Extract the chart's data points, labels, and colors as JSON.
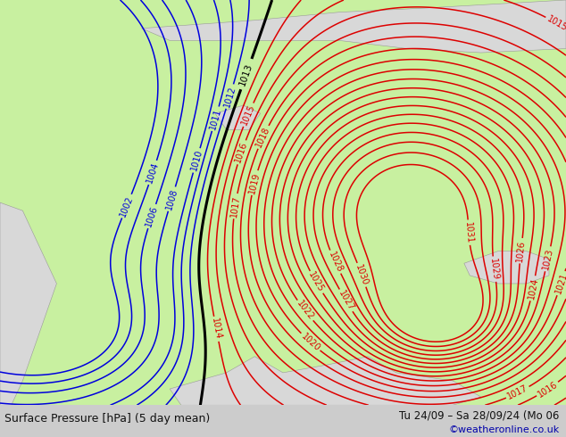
{
  "title_left": "Surface Pressure [hPa] (5 day mean)",
  "title_right": "Tu 24/09 – Sa 28/09/24 (Mo 06",
  "watermark": "©weatheronline.co.uk",
  "land_color": "#c8f0a0",
  "sea_color": "#d8d8d8",
  "blue_color": "#0000dd",
  "red_color": "#dd0000",
  "black_color": "#000000",
  "footer_bg": "#cccccc",
  "fig_width": 6.34,
  "fig_height": 4.9,
  "dpi": 100,
  "blue_levels": [
    1002,
    1004,
    1006,
    1008,
    1010,
    1011,
    1012
  ],
  "black_levels": [
    1013
  ],
  "red_levels": [
    1014,
    1015,
    1016,
    1017,
    1018,
    1019,
    1020,
    1021,
    1022,
    1023,
    1024,
    1025,
    1026,
    1027,
    1028,
    1029,
    1030,
    1031
  ]
}
